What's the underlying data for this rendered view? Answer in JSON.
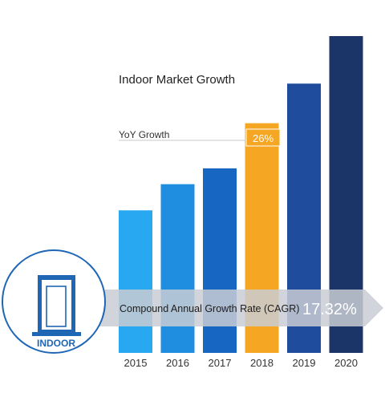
{
  "chart_data": {
    "type": "bar",
    "title": "Indoor Market Growth",
    "categories": [
      "2015",
      "2016",
      "2017",
      "2018",
      "2019",
      "2020"
    ],
    "values": [
      180,
      213,
      233,
      290,
      340,
      400
    ],
    "value_unit": "relative bar height (no value axis printed)",
    "bar_colors": [
      "#28a8f0",
      "#1f8ee0",
      "#1666c2",
      "#f5a623",
      "#1f4c9c",
      "#1c3569"
    ],
    "highlight": {
      "category": "2018",
      "label": "YoY Growth",
      "value_label": "26%"
    },
    "cagr": {
      "label": "Compound Annual Growth Rate (CAGR)",
      "value_label": "17.32%"
    },
    "grid": false,
    "legend": "none"
  },
  "badge": {
    "label": "INDOOR",
    "icon": "door-icon",
    "color": "#1f66b5"
  },
  "colors": {
    "arrow": "#c9cdd3",
    "tick_text": "#333333",
    "title_text": "#222222"
  }
}
